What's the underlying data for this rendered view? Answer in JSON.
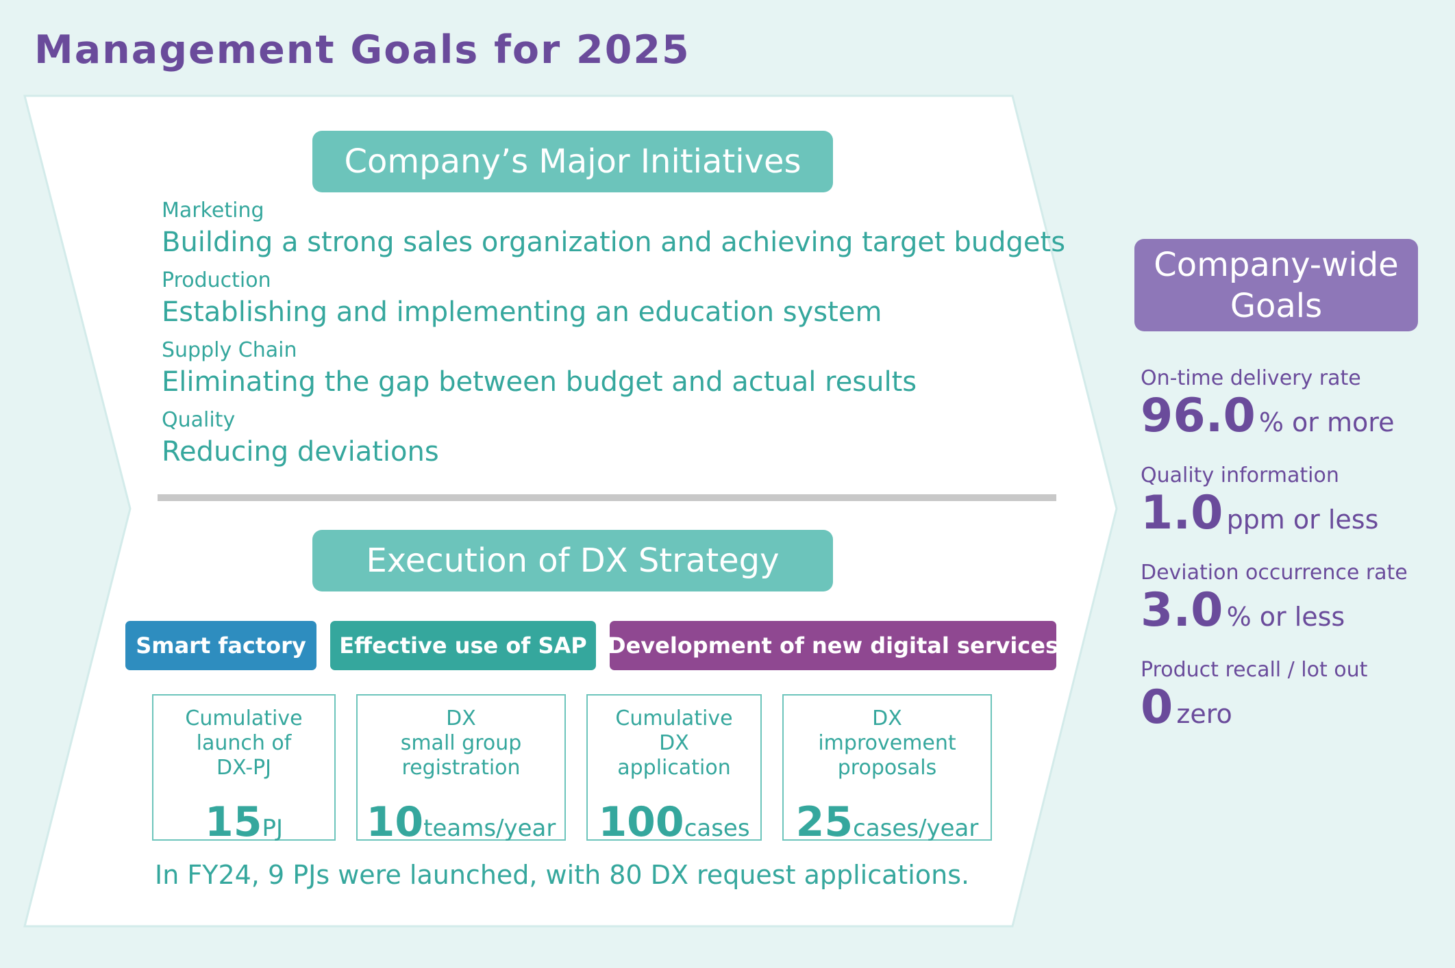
{
  "title": "Management Goals for 2025",
  "colors": {
    "background": "#e6f4f3",
    "teal": "#6cc4bb",
    "teal_text": "#35a79d",
    "purple": "#6a4b9b",
    "badge_purple": "#8e77b8",
    "blue_tag": "#2e8dbf",
    "teal_tag": "#35a79d",
    "magenta_tag": "#8f4891",
    "divider": "#c8c8c8"
  },
  "major_initiatives": {
    "heading": "Company’s Major Initiatives",
    "items": [
      {
        "category": "Marketing",
        "description": "Building a strong sales organization and achieving target budgets"
      },
      {
        "category": "Production",
        "description": "Establishing and implementing an education system"
      },
      {
        "category": "Supply Chain",
        "description": "Eliminating the gap between budget and actual results"
      },
      {
        "category": "Quality",
        "description": "Reducing deviations"
      }
    ]
  },
  "dx_strategy": {
    "heading": "Execution of DX Strategy",
    "tags": [
      "Smart factory",
      "Effective use of SAP",
      "Development of new digital services"
    ],
    "metrics": [
      {
        "label_lines": [
          "Cumulative",
          "launch of",
          "DX-PJ"
        ],
        "value": "15",
        "unit": "PJ"
      },
      {
        "label_lines": [
          "DX",
          "small group",
          "registration"
        ],
        "value": "10",
        "unit": "teams/year"
      },
      {
        "label_lines": [
          "Cumulative",
          "DX",
          "application"
        ],
        "value": "100",
        "unit": "cases"
      },
      {
        "label_lines": [
          "DX",
          "improvement",
          "proposals"
        ],
        "value": "25",
        "unit": "cases/year"
      }
    ],
    "note": "In FY24, 9 PJs were launched, with 80 DX request applications."
  },
  "company_goals": {
    "heading_lines": [
      "Company-wide",
      "Goals"
    ],
    "goals": [
      {
        "label": "On-time delivery rate",
        "value": "96.0",
        "unit": "% or more"
      },
      {
        "label": "Quality information",
        "value": "1.0",
        "unit": "ppm or less"
      },
      {
        "label": "Deviation occurrence rate",
        "value": "3.0",
        "unit": "% or less"
      },
      {
        "label": "Product recall / lot out",
        "value": "0",
        "unit": "zero"
      }
    ]
  }
}
